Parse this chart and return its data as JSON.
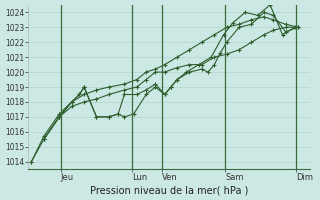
{
  "xlabel": "Pression niveau de la mer( hPa )",
  "ylim": [
    1013.5,
    1024.5
  ],
  "yticks": [
    1014,
    1015,
    1016,
    1017,
    1018,
    1019,
    1020,
    1021,
    1022,
    1023,
    1024
  ],
  "bg_color": "#cce8e4",
  "grid_color": "#aaceca",
  "line_color": "#2d5e2d",
  "sep_color": "#3a6a3a",
  "line1_x": [
    0,
    0.4,
    0.9,
    1.3,
    1.7,
    2.1,
    2.5,
    3.0,
    3.4,
    3.7,
    4.0,
    4.3,
    4.7,
    5.1,
    5.5,
    5.9,
    6.3,
    6.7,
    7.1,
    7.5,
    7.8,
    8.2,
    8.6
  ],
  "line1_y": [
    1014.0,
    1015.5,
    1017.0,
    1017.7,
    1018.0,
    1018.2,
    1018.5,
    1018.8,
    1019.0,
    1019.5,
    1020.0,
    1020.0,
    1020.3,
    1020.5,
    1020.5,
    1021.0,
    1021.2,
    1021.5,
    1022.0,
    1022.5,
    1022.8,
    1023.0,
    1023.0
  ],
  "line2_x": [
    0,
    0.4,
    0.9,
    1.3,
    1.7,
    2.1,
    2.5,
    3.0,
    3.4,
    3.7,
    4.0,
    4.3,
    4.7,
    5.1,
    5.5,
    5.9,
    6.3,
    6.7,
    7.1,
    7.5,
    7.8,
    8.2,
    8.6
  ],
  "line2_y": [
    1014.0,
    1015.7,
    1017.2,
    1018.0,
    1018.5,
    1018.8,
    1019.0,
    1019.2,
    1019.5,
    1020.0,
    1020.2,
    1020.5,
    1021.0,
    1021.5,
    1022.0,
    1022.5,
    1023.0,
    1023.2,
    1023.5,
    1023.7,
    1023.5,
    1023.2,
    1023.0
  ],
  "line3_x": [
    0.4,
    0.9,
    1.3,
    1.55,
    1.7,
    2.1,
    2.5,
    2.8,
    3.0,
    3.4,
    3.7,
    4.0,
    4.3,
    4.5,
    4.7,
    5.1,
    5.5,
    5.7,
    5.9,
    6.1,
    6.3,
    6.7,
    7.1,
    7.5,
    7.8,
    8.2,
    8.6
  ],
  "line3_y": [
    1015.5,
    1017.0,
    1018.0,
    1018.5,
    1019.0,
    1017.0,
    1017.0,
    1017.2,
    1018.5,
    1018.5,
    1018.8,
    1019.2,
    1018.5,
    1019.0,
    1019.5,
    1020.0,
    1020.2,
    1020.0,
    1020.5,
    1021.3,
    1022.0,
    1023.0,
    1023.2,
    1024.0,
    1023.8,
    1022.7,
    1023.0
  ],
  "line4_x": [
    0.4,
    0.9,
    1.3,
    1.55,
    1.7,
    2.1,
    2.5,
    2.8,
    3.0,
    3.3,
    3.7,
    4.0,
    4.3,
    4.5,
    4.7,
    5.0,
    5.4,
    5.8,
    6.2,
    6.5,
    6.9,
    7.3,
    7.7,
    8.1,
    8.5
  ],
  "line4_y": [
    1015.5,
    1017.0,
    1018.0,
    1018.5,
    1019.0,
    1017.0,
    1017.0,
    1017.2,
    1017.0,
    1017.2,
    1018.5,
    1019.0,
    1018.5,
    1019.0,
    1019.5,
    1020.0,
    1020.5,
    1021.0,
    1022.5,
    1023.3,
    1024.0,
    1023.8,
    1024.5,
    1022.5,
    1023.0
  ],
  "sep_x": [
    0.95,
    3.25,
    4.2,
    6.25,
    8.55
  ],
  "xtick_pos": [
    0.95,
    3.25,
    4.2,
    6.25,
    8.55
  ],
  "xtick_labels": [
    "Jeu",
    "Lun",
    "Ven",
    "Sam",
    "Dim"
  ],
  "xlim": [
    -0.1,
    9.0
  ]
}
